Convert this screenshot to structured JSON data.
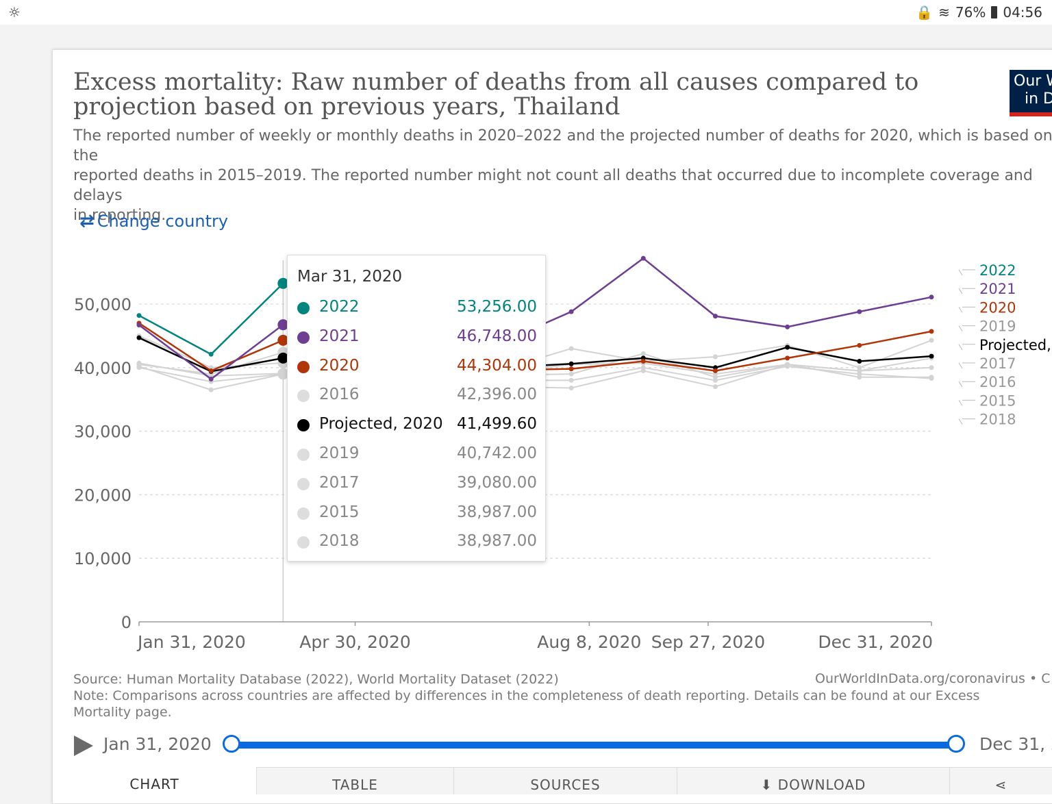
{
  "status_bar": {
    "left_icon": "weather-icon",
    "battery": "76%",
    "time": "04:56"
  },
  "header": {
    "title": "Excess mortality: Raw number of deaths from all causes compared to projection based on previous years, Thailand",
    "subtitle": "The reported number of weekly or monthly deaths in 2020–2022 and the projected number of deaths for 2020, which is based on the\nreported deaths in 2015–2019. The reported number might not count all deaths that occurred due to incomplete coverage and delays\nin reporting.",
    "logo_line1": "Our W",
    "logo_line2": "in D"
  },
  "controls": {
    "change_country": "Change country"
  },
  "tooltip": {
    "date": "Mar 31, 2020",
    "rows": [
      {
        "name": "2022",
        "value": "53,256.00",
        "color": "#00847e"
      },
      {
        "name": "2021",
        "value": "46,748.00",
        "color": "#6d3e91"
      },
      {
        "name": "2020",
        "value": "44,304.00",
        "color": "#b13507"
      },
      {
        "name": "2016",
        "value": "42,396.00",
        "color": "#dddddd"
      },
      {
        "name": "Projected, 2020",
        "value": "41,499.60",
        "color": "#000000"
      },
      {
        "name": "2019",
        "value": "40,742.00",
        "color": "#dddddd"
      },
      {
        "name": "2017",
        "value": "39,080.00",
        "color": "#dddddd"
      },
      {
        "name": "2015",
        "value": "38,987.00",
        "color": "#dddddd"
      },
      {
        "name": "2018",
        "value": "38,987.00",
        "color": "#dddddd"
      }
    ]
  },
  "chart_data": {
    "type": "line",
    "title": "Excess mortality: Raw number of deaths from all causes compared to projection based on previous years, Thailand",
    "xlabel": "",
    "ylabel": "",
    "ylim": [
      0,
      55000
    ],
    "yticks": [
      0,
      10000,
      20000,
      30000,
      40000,
      50000
    ],
    "ytick_labels": [
      "0",
      "10,000",
      "20,000",
      "30,000",
      "40,000",
      "50,000"
    ],
    "x_categories": [
      "Jan 31, 2020",
      "Feb 29, 2020",
      "Mar 31, 2020",
      "Apr 30, 2020",
      "May 31, 2020",
      "Jun 30, 2020",
      "Jul 31, 2020",
      "Aug 31, 2020",
      "Sep 30, 2020",
      "Oct 31, 2020",
      "Nov 30, 2020",
      "Dec 31, 2020"
    ],
    "x_tick_labels": [
      "Jan 31, 2020",
      "Apr 30, 2020",
      "Aug 8, 2020",
      "Sep 27, 2020",
      "Dec 31, 2020"
    ],
    "x_tick_indices": [
      0,
      3,
      6.25,
      7.9,
      11
    ],
    "grid": true,
    "legend_position": "right",
    "hover_index": 2,
    "series": [
      {
        "name": "2015",
        "color": "#d3d3d3",
        "values": [
          40200,
          36500,
          38987,
          40500,
          38500,
          37000,
          36800,
          39500,
          37000,
          40500,
          38500,
          38500
        ]
      },
      {
        "name": "2016",
        "color": "#d3d3d3",
        "values": [
          40500,
          39000,
          42396,
          43500,
          41500,
          38800,
          39000,
          42200,
          38500,
          40500,
          39500,
          40000
        ]
      },
      {
        "name": "2017",
        "color": "#d3d3d3",
        "values": [
          40700,
          38700,
          39080,
          40800,
          39500,
          39200,
          40500,
          40700,
          39000,
          40500,
          39500,
          41500
        ]
      },
      {
        "name": "2018",
        "color": "#d3d3d3",
        "values": [
          40000,
          37800,
          38987,
          40200,
          38600,
          38000,
          38000,
          40000,
          38000,
          40200,
          39000,
          38300
        ]
      },
      {
        "name": "2019",
        "color": "#d3d3d3",
        "values": [
          45000,
          40000,
          40742,
          44500,
          45500,
          39600,
          43000,
          41000,
          41700,
          43500,
          40000,
          44300
        ]
      },
      {
        "name": "Projected, 2020",
        "color": "#000000",
        "values": [
          44700,
          39400,
          41499.6,
          41200,
          40800,
          40000,
          40600,
          41500,
          40000,
          43200,
          41000,
          41800
        ]
      },
      {
        "name": "2020",
        "color": "#b13507",
        "values": [
          47000,
          39500,
          44304,
          41500,
          40200,
          39600,
          39800,
          41000,
          39500,
          41500,
          43500,
          45700
        ]
      },
      {
        "name": "2021",
        "color": "#6d3e91",
        "values": [
          46700,
          38200,
          46748,
          45500,
          44500,
          43800,
          48800,
          57200,
          48100,
          46400,
          48800,
          51100
        ]
      },
      {
        "name": "2022",
        "color": "#00847e",
        "values": [
          48200,
          42100,
          53256
        ]
      }
    ],
    "legend": [
      {
        "name": "2022",
        "color": "#00847e"
      },
      {
        "name": "2021",
        "color": "#6d3e91"
      },
      {
        "name": "2020",
        "color": "#b13507"
      },
      {
        "name": "2019",
        "color": "#999999"
      },
      {
        "name": "Projected, 2020",
        "color": "#000000"
      },
      {
        "name": "2017",
        "color": "#999999"
      },
      {
        "name": "2016",
        "color": "#999999"
      },
      {
        "name": "2015",
        "color": "#999999"
      },
      {
        "name": "2018",
        "color": "#999999"
      }
    ]
  },
  "footer": {
    "source": "Source: Human Mortality Database (2022), World Mortality Dataset (2022)",
    "source_url": "OurWorldInData.org/coronavirus • C",
    "note": "Note: Comparisons across countries are affected by differences in the completeness of death reporting. Details can be found at our Excess Mortality page."
  },
  "timeline": {
    "start": "Jan 31, 2020",
    "end": "Dec 31, 2"
  },
  "tabs": [
    {
      "label": "CHART",
      "icon": ""
    },
    {
      "label": "TABLE",
      "icon": ""
    },
    {
      "label": "SOURCES",
      "icon": ""
    },
    {
      "label": "DOWNLOAD",
      "icon": "download-icon"
    },
    {
      "label": "",
      "icon": "share-icon"
    }
  ]
}
